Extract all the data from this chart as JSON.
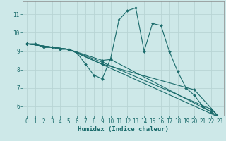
{
  "xlabel": "Humidex (Indice chaleur)",
  "background_color": "#cde8e8",
  "grid_color": "#b8d4d4",
  "line_color": "#1a6b6b",
  "xlim": [
    -0.5,
    23.5
  ],
  "ylim": [
    5.5,
    11.7
  ],
  "xticks": [
    0,
    1,
    2,
    3,
    4,
    5,
    6,
    7,
    8,
    9,
    10,
    11,
    12,
    13,
    14,
    15,
    16,
    17,
    18,
    19,
    20,
    21,
    22,
    23
  ],
  "yticks": [
    6,
    7,
    8,
    9,
    10,
    11
  ],
  "series": [
    {
      "x": [
        0,
        1,
        2,
        3,
        4,
        5,
        6,
        7,
        8,
        9,
        10,
        11,
        12,
        13,
        14,
        15,
        16,
        17,
        18,
        19,
        20,
        21,
        22,
        23
      ],
      "y": [
        9.4,
        9.4,
        9.2,
        9.2,
        9.1,
        9.1,
        8.9,
        8.3,
        7.7,
        7.5,
        8.6,
        10.7,
        11.2,
        11.35,
        9.0,
        10.5,
        10.4,
        9.0,
        7.9,
        7.0,
        6.6,
        6.0,
        5.7,
        5.4
      ]
    },
    {
      "x": [
        0,
        5,
        9,
        10,
        22,
        23
      ],
      "y": [
        9.4,
        9.1,
        8.5,
        8.55,
        5.7,
        5.4
      ]
    },
    {
      "x": [
        0,
        5,
        9,
        22,
        23
      ],
      "y": [
        9.4,
        9.1,
        8.4,
        5.85,
        5.4
      ]
    },
    {
      "x": [
        0,
        5,
        9,
        20,
        23
      ],
      "y": [
        9.4,
        9.1,
        8.3,
        6.9,
        5.4
      ]
    },
    {
      "x": [
        0,
        5,
        23
      ],
      "y": [
        9.4,
        9.1,
        5.4
      ]
    }
  ]
}
